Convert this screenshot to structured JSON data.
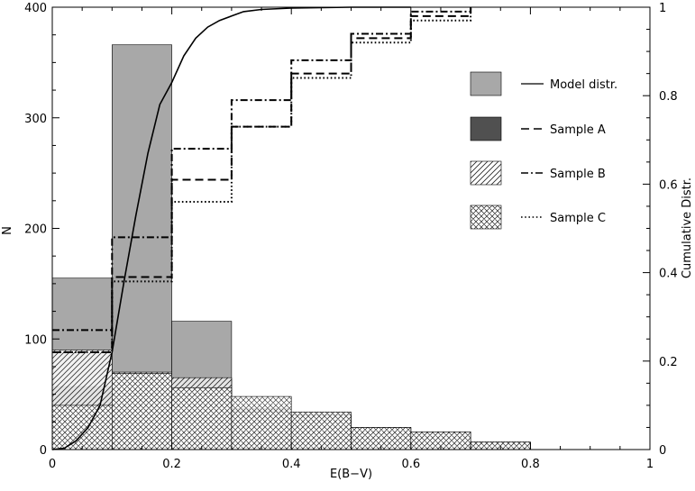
{
  "chart_data": {
    "type": "bar",
    "xlabel": "E(B−V)",
    "ylabel": "N",
    "y2label": "Cumulative Distr.",
    "xlim": [
      0,
      1
    ],
    "ylim": [
      0,
      400
    ],
    "y2lim": [
      0,
      1
    ],
    "xticks": [
      "0",
      "0.2",
      "0.4",
      "0.6",
      "0.8",
      "1"
    ],
    "yticks": [
      "0",
      "100",
      "200",
      "300",
      "400"
    ],
    "y2ticks": [
      "0",
      "0.2",
      "0.4",
      "0.6",
      "0.8",
      "1"
    ],
    "bin_edges": [
      0,
      0.1,
      0.2,
      0.3,
      0.4,
      0.5,
      0.6,
      0.7,
      0.8
    ],
    "histograms": [
      {
        "name": "Model distr.",
        "fill": "#a8a8a8",
        "values": [
          155,
          366,
          116,
          37,
          32,
          19,
          15,
          6
        ]
      },
      {
        "name": "Sample A",
        "fill": "#505050",
        "values": [
          57,
          69,
          64,
          33,
          30,
          20,
          16,
          5
        ]
      },
      {
        "name": "Sample B",
        "fill": "hatch-diag",
        "values": [
          90,
          70,
          65,
          34,
          31,
          20,
          16,
          6
        ]
      },
      {
        "name": "Sample C",
        "fill": "hatch-cross",
        "values": [
          40,
          69,
          56,
          48,
          34,
          20,
          16,
          7
        ]
      }
    ],
    "cumulative": [
      {
        "name": "Model distr.",
        "style": "solid",
        "x": [
          0,
          0.02,
          0.04,
          0.06,
          0.08,
          0.1,
          0.12,
          0.14,
          0.16,
          0.18,
          0.2,
          0.22,
          0.24,
          0.26,
          0.28,
          0.3,
          0.32,
          0.35,
          0.4,
          0.45,
          0.5,
          0.55,
          0.6
        ],
        "y": [
          0,
          0.003,
          0.02,
          0.05,
          0.1,
          0.22,
          0.38,
          0.53,
          0.67,
          0.78,
          0.83,
          0.89,
          0.93,
          0.955,
          0.97,
          0.98,
          0.99,
          0.995,
          0.998,
          0.999,
          1.0,
          1.0,
          1.0
        ]
      },
      {
        "name": "Sample A",
        "style": "dashed",
        "x": [
          0,
          0.1,
          0.2,
          0.3,
          0.4,
          0.5,
          0.6,
          0.7
        ],
        "y": [
          0.22,
          0.39,
          0.61,
          0.73,
          0.85,
          0.93,
          0.98,
          1.0
        ]
      },
      {
        "name": "Sample B",
        "style": "dashdot",
        "x": [
          0,
          0.1,
          0.2,
          0.3,
          0.4,
          0.5,
          0.6,
          0.7
        ],
        "y": [
          0.27,
          0.48,
          0.68,
          0.79,
          0.88,
          0.94,
          0.99,
          1.0
        ]
      },
      {
        "name": "Sample C",
        "style": "dotted",
        "x": [
          0,
          0.1,
          0.2,
          0.3,
          0.4,
          0.5,
          0.6,
          0.7
        ],
        "y": [
          0.22,
          0.38,
          0.56,
          0.73,
          0.84,
          0.92,
          0.97,
          1.0
        ]
      }
    ],
    "legend": {
      "placement": "right",
      "entries": [
        {
          "label": "Model distr.",
          "swatch": "#a8a8a8",
          "line": "solid"
        },
        {
          "label": "Sample A",
          "swatch": "#505050",
          "line": "dashed"
        },
        {
          "label": "Sample B",
          "swatch": "hatch-diag",
          "line": "dashdot"
        },
        {
          "label": "Sample C",
          "swatch": "hatch-cross",
          "line": "dotted"
        }
      ]
    },
    "grid": false
  }
}
